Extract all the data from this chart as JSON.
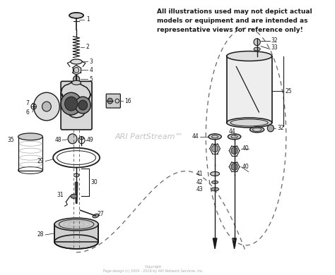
{
  "bg_color": "#ffffff",
  "disclaimer": "All illustrations used may not depict actual\nmodels or equipment and are intended as\nrepresentative views for reference only!",
  "watermark": "ARI PartStream™",
  "copyright": "Copyright\nPage design (c) 2004 - 2016 by ARI Network Services, Inc.",
  "main_color": "#1a1a1a",
  "light_gray": "#aaaaaa",
  "dashed_color": "#666666",
  "figsize": [
    4.74,
    3.9
  ],
  "dpi": 100
}
